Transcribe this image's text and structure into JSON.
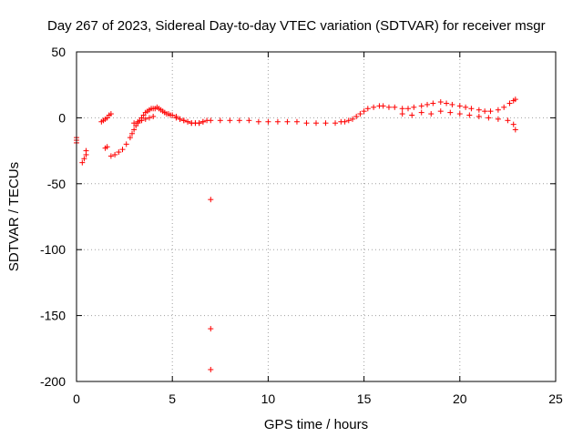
{
  "chart_data": {
    "type": "scatter",
    "title": "Day 267 of 2023, Sidereal Day-to-day VTEC variation (SDTVAR) for receiver msgr",
    "xlabel": "GPS time / hours",
    "ylabel": "SDTVAR / TECUs",
    "xlim": [
      0,
      25
    ],
    "ylim": [
      -200,
      50
    ],
    "xticks": [
      0,
      5,
      10,
      15,
      20,
      25
    ],
    "yticks": [
      50,
      0,
      -50,
      -100,
      -150,
      -200
    ],
    "grid": true,
    "marker": "+",
    "series": [
      {
        "name": "SDTVAR",
        "color": "#ff0000",
        "x": [
          0.0,
          0.0,
          0.0,
          0.3,
          0.4,
          0.5,
          0.5,
          1.3,
          1.4,
          1.5,
          1.6,
          1.7,
          1.8,
          1.5,
          1.6,
          1.8,
          2.0,
          2.2,
          2.4,
          2.6,
          2.8,
          2.9,
          3.0,
          3.1,
          3.2,
          3.3,
          3.4,
          3.5,
          3.6,
          3.7,
          3.8,
          3.9,
          4.0,
          4.1,
          4.2,
          4.3,
          4.4,
          4.5,
          4.6,
          4.7,
          4.8,
          4.9,
          3.0,
          3.2,
          3.4,
          3.6,
          3.8,
          4.0,
          5.0,
          5.2,
          5.4,
          5.6,
          5.8,
          6.0,
          6.2,
          6.4,
          6.6,
          5.2,
          5.4,
          5.6,
          5.8,
          6.0,
          6.2,
          6.4,
          6.6,
          6.8,
          7.0,
          7.0,
          7.0,
          7.0,
          7.5,
          8.0,
          8.5,
          9.0,
          9.5,
          10.0,
          10.5,
          11.0,
          11.5,
          12.0,
          12.5,
          13.0,
          13.5,
          13.8,
          14.0,
          14.2,
          14.4,
          14.6,
          14.8,
          15.0,
          15.2,
          15.5,
          15.8,
          16.0,
          16.3,
          16.6,
          17.0,
          17.3,
          17.6,
          18.0,
          18.3,
          18.6,
          19.0,
          19.3,
          19.6,
          20.0,
          20.3,
          20.6,
          21.0,
          21.3,
          21.6,
          22.0,
          22.3,
          22.6,
          22.8,
          22.9,
          17.0,
          17.5,
          18.0,
          18.5,
          19.0,
          19.5,
          20.0,
          20.5,
          21.0,
          21.5,
          22.0,
          22.5,
          22.8,
          22.9
        ],
        "y": [
          -15,
          -17,
          -19,
          -34,
          -31,
          -28,
          -25,
          -3,
          -2,
          -1,
          0,
          2,
          3,
          -23,
          -22,
          -29,
          -28,
          -26,
          -24,
          -20,
          -15,
          -12,
          -9,
          -6,
          -4,
          -2,
          0,
          2,
          4,
          5,
          6,
          7,
          7,
          7,
          8,
          7,
          6,
          5,
          4,
          3,
          3,
          2,
          -4,
          -3,
          -2,
          -1,
          0,
          1,
          2,
          1,
          -1,
          -2,
          -3,
          -4,
          -4,
          -4,
          -3,
          0,
          -1,
          -2,
          -3,
          -4,
          -4,
          -4,
          -3,
          -2,
          -2,
          -62,
          -160,
          -191,
          -2,
          -2,
          -2,
          -2,
          -3,
          -3,
          -3,
          -3,
          -3,
          -4,
          -4,
          -4,
          -4,
          -3,
          -3,
          -2,
          -1,
          1,
          3,
          5,
          7,
          8,
          9,
          9,
          8,
          8,
          7,
          7,
          8,
          9,
          10,
          11,
          12,
          11,
          10,
          9,
          8,
          7,
          6,
          5,
          5,
          6,
          8,
          11,
          13,
          14,
          3,
          2,
          4,
          3,
          5,
          4,
          3,
          2,
          1,
          0,
          -1,
          -2,
          -5,
          -9
        ]
      }
    ]
  }
}
